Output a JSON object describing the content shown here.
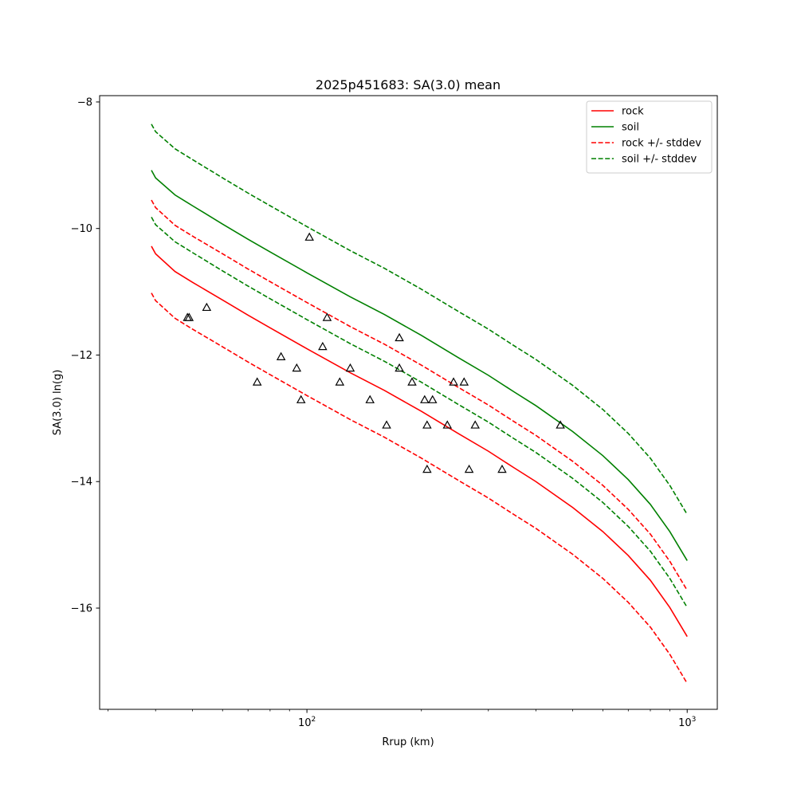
{
  "chart_data": {
    "type": "line",
    "title": "2025p451683: SA(3.0) mean",
    "xlabel": "Rrup (km)",
    "ylabel": "SA(3.0) ln(g)",
    "xscale": "log",
    "xlim": [
      28.5,
      1200
    ],
    "ylim": [
      -17.6,
      -7.9
    ],
    "yticks": [
      -8,
      -10,
      -12,
      -14,
      -16
    ],
    "xtick_labels": [
      {
        "value": 100,
        "base": "10",
        "exp": "2"
      },
      {
        "value": 1000,
        "base": "10",
        "exp": "3"
      }
    ],
    "legend_position": "top-right",
    "grid": false,
    "series": [
      {
        "name": "rock",
        "color": "#ff0000",
        "style": "solid",
        "x": [
          39,
          40,
          45,
          50,
          60,
          70,
          80,
          100,
          130,
          160,
          200,
          250,
          300,
          350,
          400,
          500,
          600,
          700,
          800,
          900,
          1000
        ],
        "y": [
          -10.28,
          -10.4,
          -10.68,
          -10.85,
          -11.13,
          -11.37,
          -11.57,
          -11.9,
          -12.28,
          -12.56,
          -12.89,
          -13.24,
          -13.52,
          -13.78,
          -14.0,
          -14.41,
          -14.79,
          -15.17,
          -15.56,
          -15.99,
          -16.45
        ]
      },
      {
        "name": "soil",
        "color": "#008000",
        "style": "solid",
        "x": [
          39,
          40,
          45,
          50,
          60,
          70,
          80,
          100,
          130,
          160,
          200,
          250,
          300,
          350,
          400,
          500,
          600,
          700,
          800,
          900,
          1000
        ],
        "y": [
          -9.08,
          -9.2,
          -9.47,
          -9.64,
          -9.93,
          -10.17,
          -10.37,
          -10.7,
          -11.08,
          -11.36,
          -11.69,
          -12.04,
          -12.32,
          -12.58,
          -12.8,
          -13.21,
          -13.59,
          -13.97,
          -14.36,
          -14.79,
          -15.25
        ]
      },
      {
        "name": "rock +/- stddev",
        "color": "#ff0000",
        "style": "dashed",
        "x": [
          39,
          40,
          45,
          50,
          60,
          70,
          80,
          100,
          130,
          160,
          200,
          250,
          300,
          350,
          400,
          500,
          600,
          700,
          800,
          900,
          1000
        ],
        "y": [
          -9.55,
          -9.67,
          -9.95,
          -10.12,
          -10.4,
          -10.64,
          -10.84,
          -11.17,
          -11.55,
          -11.83,
          -12.16,
          -12.51,
          -12.79,
          -13.05,
          -13.27,
          -13.68,
          -14.06,
          -14.44,
          -14.83,
          -15.26,
          -15.72
        ]
      },
      {
        "name": "rock +/- stddev",
        "color": "#ff0000",
        "style": "dashed",
        "x": [
          39,
          40,
          45,
          50,
          60,
          70,
          80,
          100,
          130,
          160,
          200,
          250,
          300,
          350,
          400,
          500,
          600,
          700,
          800,
          900,
          1000
        ],
        "y": [
          -11.02,
          -11.14,
          -11.42,
          -11.59,
          -11.87,
          -12.11,
          -12.31,
          -12.64,
          -13.02,
          -13.3,
          -13.63,
          -13.98,
          -14.26,
          -14.52,
          -14.74,
          -15.15,
          -15.53,
          -15.91,
          -16.3,
          -16.73,
          -17.19
        ]
      },
      {
        "name": "soil +/- stddev",
        "color": "#008000",
        "style": "dashed",
        "x": [
          39,
          40,
          45,
          50,
          60,
          70,
          80,
          100,
          130,
          160,
          200,
          250,
          300,
          350,
          400,
          500,
          600,
          700,
          800,
          900,
          1000
        ],
        "y": [
          -8.35,
          -8.47,
          -8.74,
          -8.91,
          -9.2,
          -9.44,
          -9.64,
          -9.97,
          -10.35,
          -10.63,
          -10.96,
          -11.31,
          -11.59,
          -11.85,
          -12.07,
          -12.48,
          -12.86,
          -13.24,
          -13.63,
          -14.06,
          -14.52
        ]
      },
      {
        "name": "soil +/- stddev",
        "color": "#008000",
        "style": "dashed",
        "x": [
          39,
          40,
          45,
          50,
          60,
          70,
          80,
          100,
          130,
          160,
          200,
          250,
          300,
          350,
          400,
          500,
          600,
          700,
          800,
          900,
          1000
        ],
        "y": [
          -9.82,
          -9.94,
          -10.21,
          -10.38,
          -10.67,
          -10.91,
          -11.11,
          -11.44,
          -11.82,
          -12.1,
          -12.43,
          -12.78,
          -13.06,
          -13.32,
          -13.54,
          -13.95,
          -14.33,
          -14.71,
          -15.1,
          -15.53,
          -15.99
        ]
      }
    ],
    "legend": [
      {
        "label": "rock",
        "color": "#ff0000",
        "style": "solid"
      },
      {
        "label": "soil",
        "color": "#008000",
        "style": "solid"
      },
      {
        "label": "rock +/- stddev",
        "color": "#ff0000",
        "style": "dashed"
      },
      {
        "label": "soil +/- stddev",
        "color": "#008000",
        "style": "dashed"
      }
    ],
    "observations": {
      "marker": "triangle",
      "color": "#000000",
      "x": [
        48.5,
        49,
        54.5,
        74,
        85.5,
        94,
        96.5,
        101.5,
        110,
        113,
        122,
        130,
        146.5,
        162,
        175,
        175,
        189,
        204,
        207,
        207,
        214,
        234,
        243,
        259,
        267,
        277,
        326,
        464
      ],
      "y": [
        -11.41,
        -11.41,
        -11.25,
        -12.43,
        -12.03,
        -12.21,
        -12.71,
        -10.14,
        -11.87,
        -11.41,
        -12.43,
        -12.21,
        -12.71,
        -13.11,
        -11.73,
        -12.21,
        -12.43,
        -12.71,
        -13.11,
        -13.81,
        -12.71,
        -13.11,
        -12.43,
        -12.43,
        -13.81,
        -13.11,
        -13.81,
        -13.11
      ]
    }
  }
}
